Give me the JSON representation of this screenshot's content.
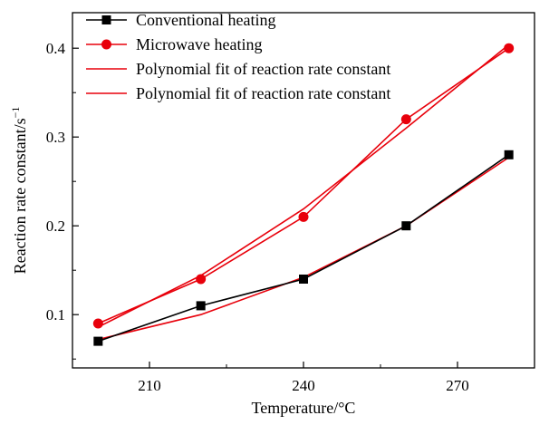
{
  "chart_data": {
    "type": "line",
    "xlabel": "Temperature/°C",
    "ylabel": "Reaction rate constant/s",
    "ylabel_superscript": "−1",
    "xlim": [
      195,
      285
    ],
    "ylim": [
      0.04,
      0.44
    ],
    "xticks": [
      210,
      240,
      270
    ],
    "yticks": [
      0.1,
      0.2,
      0.3,
      0.4
    ],
    "xtick_labels": [
      "210",
      "240",
      "270"
    ],
    "ytick_labels": [
      "0.1",
      "0.2",
      "0.3",
      "0.4"
    ],
    "x": [
      200,
      220,
      240,
      260,
      280
    ],
    "series": [
      {
        "name": "Conventional heating",
        "values": [
          0.07,
          0.11,
          0.14,
          0.2,
          0.28
        ],
        "color": "#000000",
        "marker": "square",
        "line": "solid"
      },
      {
        "name": "Microwave heating",
        "values": [
          0.09,
          0.14,
          0.21,
          0.32,
          0.4
        ],
        "color": "#e8000b",
        "marker": "circle",
        "line": "solid"
      },
      {
        "name": "Polynomial fit of reaction rate constant",
        "values": [
          0.072,
          0.1,
          0.142,
          0.2,
          0.277
        ],
        "color": "#e8000b",
        "marker": "none",
        "line": "solid"
      },
      {
        "name": "Polynomial fit of reaction rate constant",
        "values": [
          0.086,
          0.144,
          0.219,
          0.31,
          0.404
        ],
        "color": "#e8000b",
        "marker": "none",
        "line": "solid"
      }
    ],
    "legend_position": "top-left",
    "grid": false
  }
}
